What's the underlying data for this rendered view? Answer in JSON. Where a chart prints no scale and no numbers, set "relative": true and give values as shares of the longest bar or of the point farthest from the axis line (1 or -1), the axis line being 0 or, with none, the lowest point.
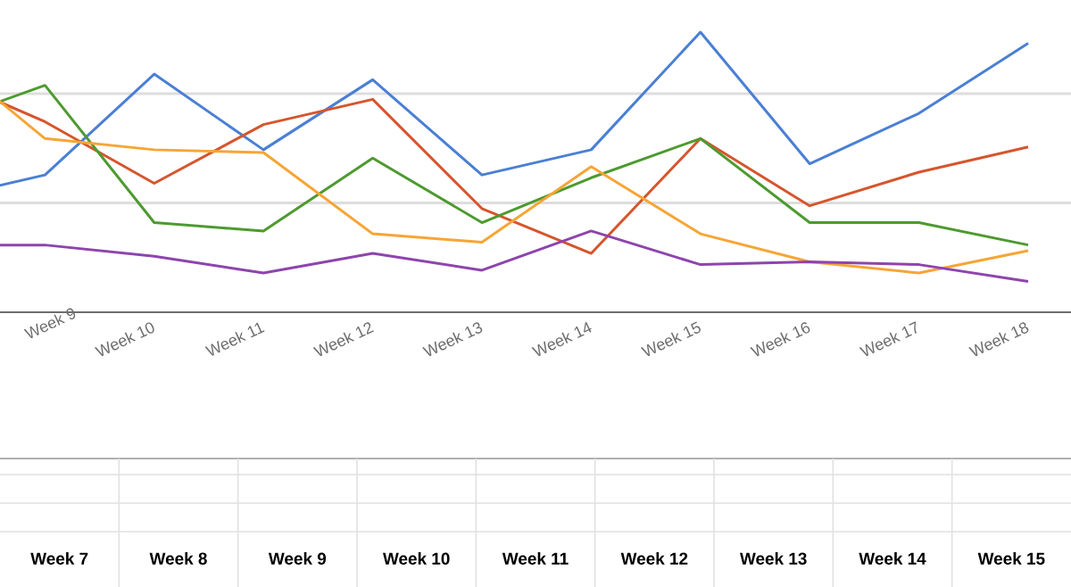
{
  "chart_data": {
    "type": "line",
    "relative": true,
    "ref_lines": [
      {
        "axis": "y",
        "value": 0.39,
        "color": "#dddddd"
      },
      {
        "axis": "y",
        "value": 0.78,
        "color": "#dddddd"
      }
    ],
    "categories": [
      null,
      "Week 9",
      "Week 10",
      "Week 11",
      "Week 12",
      "Week 13",
      "Week 14",
      "Week 15",
      "Week 16",
      "Week 17",
      "Week 18"
    ],
    "series": [
      {
        "color": "#4a7fd4",
        "values": [
          0.4,
          0.49,
          0.85,
          0.58,
          0.83,
          0.49,
          0.58,
          1,
          0.53,
          0.71,
          0.96
        ]
      },
      {
        "color": "#d6552d",
        "values": [
          0.85,
          0.68,
          0.46,
          0.67,
          0.76,
          0.37,
          0.21,
          0.62,
          0.38,
          0.5,
          0.59
        ]
      },
      {
        "color": "#4d9a2f",
        "values": [
          0.67,
          0.81,
          0.32,
          0.29,
          0.55,
          0.32,
          0.48,
          0.62,
          0.32,
          0.32,
          0.24
        ]
      },
      {
        "color": "#f7a535",
        "values": [
          0.94,
          0.62,
          0.58,
          0.57,
          0.28,
          0.25,
          0.52,
          0.28,
          0.18,
          0.14,
          0.22
        ]
      },
      {
        "color": "#8e44ad",
        "values": [
          0.24,
          0.24,
          0.2,
          0.14,
          0.21,
          0.15,
          0.29,
          0.17,
          0.18,
          0.17,
          0.11
        ]
      }
    ],
    "annotations": [
      "Week 7",
      "Week 8",
      "Week 9",
      "Week 10",
      "Week 11",
      "Week 12",
      "Week 13",
      "Week 14",
      "Week 15"
    ]
  }
}
